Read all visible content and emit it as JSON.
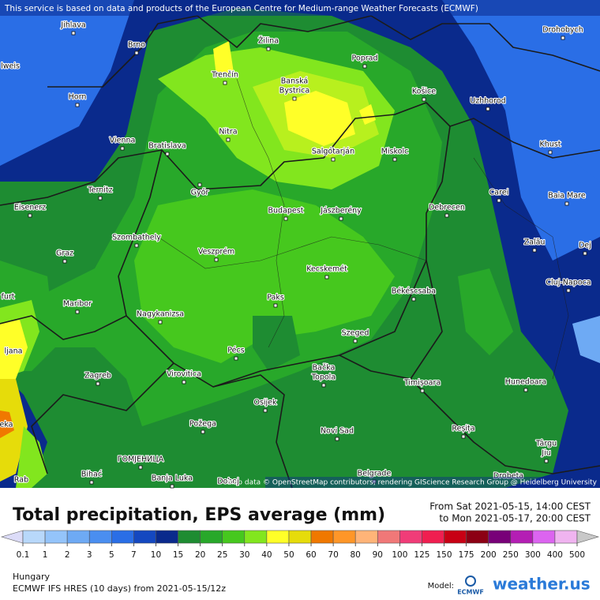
{
  "banner": "This service is based on data and products of the European Centre for Medium-range Weather Forecasts (ECMWF)",
  "attribution": "Map data © OpenStreetMap contributors, rendering GIScience Research Group @ Heidelberg University",
  "cities": [
    "Jihlava",
    "Brno",
    "Žilina",
    "Poprad",
    "Drohobych",
    "Trenčín",
    "Banská",
    "Bystrica",
    "Košice",
    "Uzhhorod",
    "lweis",
    "Horn",
    "Vienna",
    "Bratislava",
    "Nitra",
    "Salgótarján",
    "Miskolc",
    "Khust",
    "Ternitz",
    "Győr",
    "Budapest",
    "Jászberény",
    "Debrecen",
    "Carei",
    "Baia Mare",
    "Eisenerz",
    "Szombathely",
    "Veszprém",
    "Zalău",
    "Dej",
    "Graz",
    "Kecskemét",
    "Cluj-Napoca",
    "furt",
    "Maribor",
    "Paks",
    "Békéscsaba",
    "Nagykanizsa",
    "Pécs",
    "Szeged",
    "ljana",
    "Zagreb",
    "Virovitica",
    "Bačka",
    "Topola",
    "Timișoara",
    "Hunedoara",
    "Osijek",
    "eka",
    "Požega",
    "Novi Sad",
    "Reșița",
    "Târgu",
    "Jiu",
    "ГОМЈЕНИЦА",
    "Bihać",
    "Banja Luka",
    "Doboj",
    "Belgrade",
    "Drobeta",
    "Rab"
  ],
  "legend": {
    "title": "Total precipitation, EPS average (mm)",
    "from": "From Sat 2021-05-15, 14:00 CEST",
    "to": "to Mon 2021-05-17, 20:00 CEST",
    "ticks": [
      0.1,
      1,
      2,
      3,
      5,
      7,
      10,
      15,
      20,
      25,
      30,
      40,
      50,
      60,
      70,
      80,
      90,
      100,
      125,
      150,
      175,
      200,
      250,
      300,
      400,
      500
    ],
    "colors": [
      "#dcdcf8",
      "#b8d8fa",
      "#94c4fa",
      "#6eaaf4",
      "#4a8ef0",
      "#2a6ee6",
      "#1448c0",
      "#0a2a8c",
      "#1e8c32",
      "#28a82a",
      "#46c81e",
      "#82e61e",
      "#ffff28",
      "#e6dc0a",
      "#f07800",
      "#ff9628",
      "#ffb478",
      "#f07878",
      "#f03c78",
      "#f01e50",
      "#c80014",
      "#8c0014",
      "#780078",
      "#b41eb4",
      "#dc64f0",
      "#f0b4f0",
      "#f8f0f8",
      "#c8c8c8"
    ]
  },
  "footer": {
    "region": "Hungary",
    "model_run": "ECMWF IFS HRES (10 days) from  2021-05-15/12z",
    "model_label": "Model:",
    "model_logo": "ECMWF",
    "brand": "weather.us"
  }
}
